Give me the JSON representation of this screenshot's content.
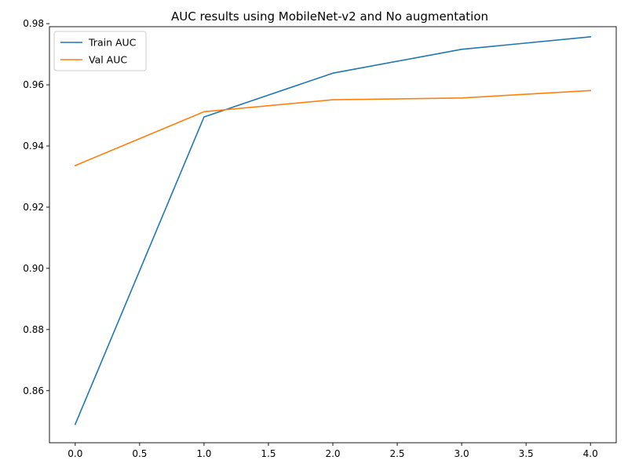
{
  "chart_data": {
    "type": "line",
    "title": "AUC results using MobileNet-v2 and No augmentation",
    "xlabel": "",
    "ylabel": "",
    "x": [
      0,
      1,
      2,
      3,
      4
    ],
    "xlim": [
      -0.2,
      4.2
    ],
    "ylim": [
      0.843,
      0.979
    ],
    "xticks": [
      0.0,
      0.5,
      1.0,
      1.5,
      2.0,
      2.5,
      3.0,
      3.5,
      4.0
    ],
    "xtick_labels": [
      "0.0",
      "0.5",
      "1.0",
      "1.5",
      "2.0",
      "2.5",
      "3.0",
      "3.5",
      "4.0"
    ],
    "yticks": [
      0.86,
      0.88,
      0.9,
      0.92,
      0.94,
      0.96,
      0.98
    ],
    "ytick_labels": [
      "0.86",
      "0.88",
      "0.90",
      "0.92",
      "0.94",
      "0.96",
      "0.98"
    ],
    "grid": false,
    "legend_position": "top-left",
    "series": [
      {
        "name": "Train AUC",
        "color": "#1f77b4",
        "values": [
          0.849,
          0.9495,
          0.9638,
          0.9716,
          0.9757
        ]
      },
      {
        "name": "Val AUC",
        "color": "#ff7f0e",
        "values": [
          0.9336,
          0.9512,
          0.9551,
          0.9557,
          0.9581
        ]
      }
    ]
  }
}
